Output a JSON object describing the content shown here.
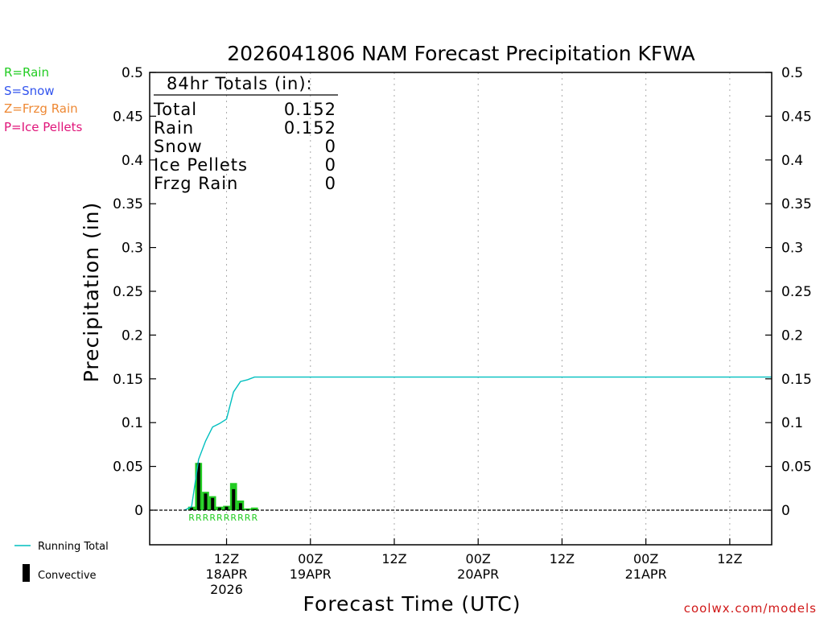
{
  "chart_data": {
    "type": "bar",
    "title": "2026041806 NAM Forecast Precipitation KFWA",
    "xlabel": "Forecast Time (UTC)",
    "ylabel": "Precipitation (in)",
    "ylim": [
      -0.04,
      0.5
    ],
    "yticks": [
      "0.5",
      "0.45",
      "0.4",
      "0.35",
      "0.3",
      "0.25",
      "0.2",
      "0.15",
      "0.1",
      "0.05",
      "0"
    ],
    "ytick_values": [
      0.5,
      0.45,
      0.4,
      0.35,
      0.3,
      0.25,
      0.2,
      0.15,
      0.1,
      0.05,
      0
    ],
    "x_range_hours": [
      -5,
      84
    ],
    "x_ticks": [
      {
        "hour": 6,
        "lines": [
          "12Z",
          "18APR",
          "2026"
        ]
      },
      {
        "hour": 18,
        "lines": [
          "00Z",
          "19APR"
        ]
      },
      {
        "hour": 30,
        "lines": [
          "12Z"
        ]
      },
      {
        "hour": 42,
        "lines": [
          "00Z",
          "20APR"
        ]
      },
      {
        "hour": 54,
        "lines": [
          "12Z"
        ]
      },
      {
        "hour": 66,
        "lines": [
          "00Z",
          "21APR"
        ]
      },
      {
        "hour": 78,
        "lines": [
          "12Z"
        ]
      }
    ],
    "hours": [
      1,
      2,
      3,
      4,
      5,
      6,
      7,
      8,
      9,
      10
    ],
    "series": [
      {
        "name": "Total",
        "color": "#22cc22",
        "values": [
          0.004,
          0.054,
          0.021,
          0.016,
          0.004,
          0.005,
          0.031,
          0.011,
          0.002,
          0.003
        ]
      },
      {
        "name": "Convective",
        "color": "#000000",
        "values": [
          0.003,
          0.054,
          0.019,
          0.014,
          0.003,
          0.004,
          0.024,
          0.008,
          0.001,
          0.001
        ]
      }
    ],
    "running_total": {
      "name": "Running Total",
      "color": "#00bfbf",
      "hours": [
        0,
        1,
        2,
        3,
        4,
        5,
        6,
        7,
        8,
        9,
        10,
        11,
        84
      ],
      "values": [
        0,
        0.004,
        0.058,
        0.079,
        0.095,
        0.099,
        0.104,
        0.135,
        0.147,
        0.149,
        0.152,
        0.152,
        0.152
      ]
    },
    "ptype_markers": "RRRRRRRRRR",
    "totals_box": {
      "header": "84hr Totals (in):",
      "rows": [
        {
          "label": "Total",
          "value": "0.152"
        },
        {
          "label": "Rain",
          "value": "0.152"
        },
        {
          "label": "Snow",
          "value": "0"
        },
        {
          "label": "Ice Pellets",
          "value": "0"
        },
        {
          "label": "Frzg Rain",
          "value": "0"
        }
      ]
    }
  },
  "ptype_legend": [
    {
      "label": "R=Rain",
      "color": "#22cc22"
    },
    {
      "label": "S=Snow",
      "color": "#3355ee"
    },
    {
      "label": "Z=Frzg Rain",
      "color": "#ee8833"
    },
    {
      "label": "P=Ice Pellets",
      "color": "#e0157a"
    }
  ],
  "bottom_legend": {
    "running_total_label": "Running Total",
    "convective_label": "Convective"
  },
  "watermark": "coolwx.com/models"
}
